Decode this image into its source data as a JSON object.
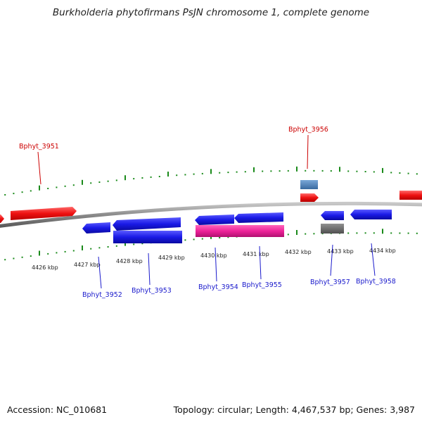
{
  "title": "Burkholderia phytofirmans PsJN chromosome 1, complete genome",
  "footer": {
    "accession": "Accession: NC_010681",
    "summary": "Topology: circular; Length: 4,467,537 bp; Genes: 3,987"
  },
  "colors": {
    "backbone": "#8a8a8a",
    "dots": "#1a8a1a",
    "forward_gene": "#ee1111",
    "reverse_gene": "#1a1ae6",
    "special_gene_steelblue": "#4a80b8",
    "special_gene_magenta": "#ee2299",
    "special_gene_gray": "#6a6a6a",
    "label_forward": "#cc0000",
    "label_reverse": "#1a1acc"
  },
  "kbp_ticks": [
    "4426 kbp",
    "4427 kbp",
    "4428 kbp",
    "4429 kbp",
    "4430 kbp",
    "4431 kbp",
    "4432 kbp",
    "4433 kbp",
    "4434 kbp"
  ],
  "gene_labels": [
    {
      "text": "Bphyt_3951",
      "strand": "forward"
    },
    {
      "text": "Bphyt_3956",
      "strand": "forward"
    },
    {
      "text": "Bphyt_3952",
      "strand": "reverse"
    },
    {
      "text": "Bphyt_3953",
      "strand": "reverse"
    },
    {
      "text": "Bphyt_3954",
      "strand": "reverse"
    },
    {
      "text": "Bphyt_3955",
      "strand": "reverse"
    },
    {
      "text": "Bphyt_3957",
      "strand": "reverse"
    },
    {
      "text": "Bphyt_3958",
      "strand": "reverse"
    }
  ]
}
